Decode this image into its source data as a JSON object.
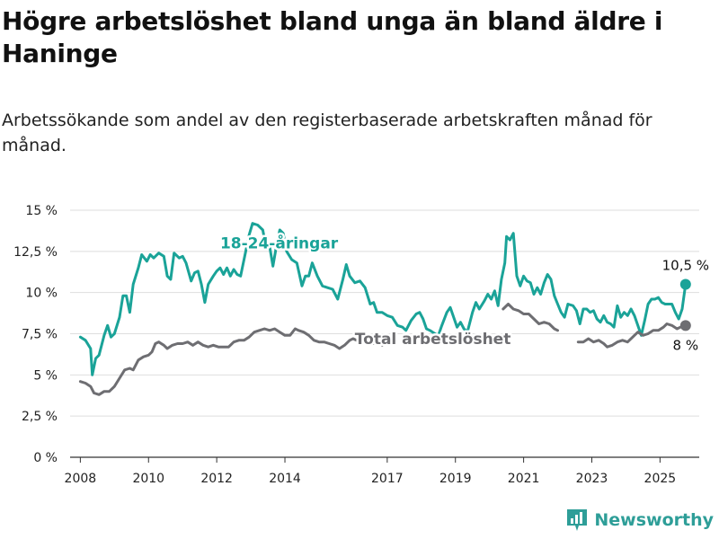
{
  "title": "Högre arbetslöshet bland unga än bland äldre i Haninge",
  "subtitle": "Arbetssökande som andel av den registerbaserade arbetskraften månad för månad.",
  "brand": {
    "name": "Newsworthy",
    "icon": "bar-chart-logo-icon",
    "color": "#2e9e98"
  },
  "chart_data": {
    "type": "line",
    "ylim": [
      0,
      15
    ],
    "yticks": [
      0,
      2.5,
      5,
      7.5,
      10,
      12.5,
      15
    ],
    "ytick_labels": [
      "0 %",
      "2,5 %",
      "5 %",
      "7,5 %",
      "10 %",
      "12,5 %",
      "15 %"
    ],
    "xlim": [
      2007.7,
      2026.15
    ],
    "xticks": [
      2008,
      2010,
      2012,
      2014,
      2017,
      2019,
      2021,
      2023,
      2025
    ],
    "xtick_labels": [
      "2008",
      "2010",
      "2012",
      "2014",
      "2017",
      "2019",
      "2021",
      "2023",
      "2025"
    ],
    "grid": true,
    "series": [
      {
        "name": "18-24-åringar",
        "color": "#1aa398",
        "label_position": [
          2012.1,
          13.0
        ],
        "end_label": "10,5 %",
        "points": [
          [
            2008.0,
            7.3
          ],
          [
            2008.15,
            7.1
          ],
          [
            2008.3,
            6.6
          ],
          [
            2008.35,
            5.0
          ],
          [
            2008.45,
            6.0
          ],
          [
            2008.55,
            6.2
          ],
          [
            2008.7,
            7.4
          ],
          [
            2008.8,
            8.0
          ],
          [
            2008.9,
            7.3
          ],
          [
            2009.0,
            7.5
          ],
          [
            2009.15,
            8.5
          ],
          [
            2009.25,
            9.8
          ],
          [
            2009.35,
            9.8
          ],
          [
            2009.45,
            8.8
          ],
          [
            2009.55,
            10.5
          ],
          [
            2009.7,
            11.5
          ],
          [
            2009.8,
            12.3
          ],
          [
            2009.95,
            11.9
          ],
          [
            2010.05,
            12.3
          ],
          [
            2010.15,
            12.1
          ],
          [
            2010.3,
            12.4
          ],
          [
            2010.45,
            12.2
          ],
          [
            2010.55,
            11.0
          ],
          [
            2010.65,
            10.8
          ],
          [
            2010.75,
            12.4
          ],
          [
            2010.9,
            12.1
          ],
          [
            2011.0,
            12.2
          ],
          [
            2011.1,
            11.8
          ],
          [
            2011.25,
            10.7
          ],
          [
            2011.35,
            11.2
          ],
          [
            2011.45,
            11.3
          ],
          [
            2011.55,
            10.5
          ],
          [
            2011.65,
            9.4
          ],
          [
            2011.75,
            10.5
          ],
          [
            2011.9,
            11.0
          ],
          [
            2012.0,
            11.3
          ],
          [
            2012.1,
            11.5
          ],
          [
            2012.2,
            11.1
          ],
          [
            2012.3,
            11.5
          ],
          [
            2012.4,
            11.0
          ],
          [
            2012.5,
            11.4
          ],
          [
            2012.6,
            11.1
          ],
          [
            2012.7,
            11.0
          ],
          [
            2012.85,
            12.5
          ],
          [
            2012.95,
            13.5
          ],
          [
            2013.05,
            14.2
          ],
          [
            2013.2,
            14.1
          ],
          [
            2013.35,
            13.8
          ],
          [
            2013.45,
            12.7
          ],
          [
            2013.55,
            12.8
          ],
          [
            2013.65,
            11.6
          ],
          [
            2013.75,
            12.8
          ],
          [
            2013.85,
            13.8
          ],
          [
            2013.95,
            13.6
          ],
          [
            2014.05,
            12.5
          ],
          [
            2014.2,
            12.0
          ],
          [
            2014.35,
            11.8
          ],
          [
            2014.5,
            10.4
          ],
          [
            2014.6,
            11.0
          ],
          [
            2014.7,
            11.0
          ],
          [
            2014.8,
            11.8
          ],
          [
            2014.95,
            11.0
          ],
          [
            2015.1,
            10.4
          ],
          [
            2015.25,
            10.3
          ],
          [
            2015.4,
            10.2
          ],
          [
            2015.55,
            9.6
          ],
          [
            2015.7,
            10.8
          ],
          [
            2015.8,
            11.7
          ],
          [
            2015.9,
            11.0
          ],
          [
            2016.05,
            10.6
          ],
          [
            2016.2,
            10.7
          ],
          [
            2016.35,
            10.3
          ],
          [
            2016.5,
            9.3
          ],
          [
            2016.6,
            9.4
          ],
          [
            2016.7,
            8.8
          ],
          [
            2016.85,
            8.8
          ],
          [
            2017.0,
            8.6
          ],
          [
            2017.15,
            8.5
          ],
          [
            2017.3,
            8.0
          ],
          [
            2017.45,
            7.9
          ],
          [
            2017.55,
            7.7
          ],
          [
            2017.7,
            8.3
          ],
          [
            2017.85,
            8.7
          ],
          [
            2017.95,
            8.8
          ],
          [
            2018.05,
            8.4
          ],
          [
            2018.15,
            7.8
          ],
          [
            2018.25,
            7.7
          ],
          [
            2018.4,
            7.5
          ],
          [
            2018.5,
            7.4
          ],
          [
            2018.6,
            8.0
          ],
          [
            2018.75,
            8.8
          ],
          [
            2018.85,
            9.1
          ],
          [
            2018.95,
            8.5
          ],
          [
            2019.05,
            7.9
          ],
          [
            2019.15,
            8.2
          ],
          [
            2019.25,
            7.8
          ],
          [
            2019.35,
            7.6
          ],
          [
            2019.5,
            8.8
          ],
          [
            2019.6,
            9.4
          ],
          [
            2019.7,
            9.0
          ],
          [
            2019.85,
            9.5
          ],
          [
            2019.95,
            9.9
          ],
          [
            2020.05,
            9.6
          ],
          [
            2020.15,
            10.1
          ],
          [
            2020.25,
            9.2
          ],
          [
            2020.35,
            10.8
          ],
          [
            2020.45,
            11.8
          ],
          [
            2020.5,
            13.4
          ],
          [
            2020.6,
            13.2
          ],
          [
            2020.7,
            13.6
          ],
          [
            2020.8,
            11.0
          ],
          [
            2020.9,
            10.4
          ],
          [
            2021.0,
            11.0
          ],
          [
            2021.1,
            10.7
          ],
          [
            2021.2,
            10.6
          ],
          [
            2021.3,
            9.9
          ],
          [
            2021.4,
            10.3
          ],
          [
            2021.5,
            9.9
          ],
          [
            2021.6,
            10.6
          ],
          [
            2021.7,
            11.1
          ],
          [
            2021.8,
            10.8
          ],
          [
            2021.9,
            9.8
          ],
          [
            2022.0,
            9.3
          ],
          [
            2022.1,
            8.8
          ],
          [
            2022.2,
            8.5
          ],
          [
            2022.3,
            9.3
          ],
          [
            2022.45,
            9.2
          ],
          [
            2022.55,
            8.9
          ],
          [
            2022.65,
            8.1
          ],
          [
            2022.75,
            9.0
          ],
          [
            2022.85,
            9.0
          ],
          [
            2022.95,
            8.8
          ],
          [
            2023.05,
            8.9
          ],
          [
            2023.15,
            8.4
          ],
          [
            2023.25,
            8.2
          ],
          [
            2023.35,
            8.6
          ],
          [
            2023.45,
            8.2
          ],
          [
            2023.55,
            8.1
          ],
          [
            2023.65,
            7.9
          ],
          [
            2023.75,
            9.2
          ],
          [
            2023.85,
            8.5
          ],
          [
            2023.95,
            8.8
          ],
          [
            2024.05,
            8.6
          ],
          [
            2024.15,
            9.0
          ],
          [
            2024.25,
            8.6
          ],
          [
            2024.35,
            8.0
          ],
          [
            2024.45,
            7.4
          ],
          [
            2024.55,
            8.3
          ],
          [
            2024.65,
            9.3
          ],
          [
            2024.75,
            9.6
          ],
          [
            2024.85,
            9.6
          ],
          [
            2024.95,
            9.7
          ],
          [
            2025.05,
            9.4
          ],
          [
            2025.15,
            9.3
          ],
          [
            2025.25,
            9.3
          ],
          [
            2025.35,
            9.3
          ],
          [
            2025.45,
            8.8
          ],
          [
            2025.55,
            8.4
          ],
          [
            2025.65,
            9.0
          ],
          [
            2025.75,
            10.5
          ]
        ]
      },
      {
        "name": "Total arbetslöshet",
        "color": "#6e6e72",
        "label_position": [
          2016.05,
          7.2
        ],
        "end_label": "8 %",
        "points": [
          [
            2008.0,
            4.6
          ],
          [
            2008.15,
            4.5
          ],
          [
            2008.3,
            4.3
          ],
          [
            2008.4,
            3.9
          ],
          [
            2008.55,
            3.8
          ],
          [
            2008.7,
            4.0
          ],
          [
            2008.85,
            4.0
          ],
          [
            2009.0,
            4.3
          ],
          [
            2009.15,
            4.8
          ],
          [
            2009.3,
            5.3
          ],
          [
            2009.45,
            5.4
          ],
          [
            2009.55,
            5.3
          ],
          [
            2009.7,
            5.9
          ],
          [
            2009.85,
            6.1
          ],
          [
            2010.0,
            6.2
          ],
          [
            2010.1,
            6.4
          ],
          [
            2010.2,
            6.9
          ],
          [
            2010.3,
            7.0
          ],
          [
            2010.45,
            6.8
          ],
          [
            2010.55,
            6.6
          ],
          [
            2010.7,
            6.8
          ],
          [
            2010.85,
            6.9
          ],
          [
            2011.0,
            6.9
          ],
          [
            2011.15,
            7.0
          ],
          [
            2011.3,
            6.8
          ],
          [
            2011.45,
            7.0
          ],
          [
            2011.6,
            6.8
          ],
          [
            2011.75,
            6.7
          ],
          [
            2011.9,
            6.8
          ],
          [
            2012.05,
            6.7
          ],
          [
            2012.2,
            6.7
          ],
          [
            2012.35,
            6.7
          ],
          [
            2012.5,
            7.0
          ],
          [
            2012.65,
            7.1
          ],
          [
            2012.8,
            7.1
          ],
          [
            2012.95,
            7.3
          ],
          [
            2013.1,
            7.6
          ],
          [
            2013.25,
            7.7
          ],
          [
            2013.4,
            7.8
          ],
          [
            2013.55,
            7.7
          ],
          [
            2013.7,
            7.8
          ],
          [
            2013.85,
            7.6
          ],
          [
            2014.0,
            7.4
          ],
          [
            2014.15,
            7.4
          ],
          [
            2014.3,
            7.8
          ],
          [
            2014.4,
            7.7
          ],
          [
            2014.55,
            7.6
          ],
          [
            2014.7,
            7.4
          ],
          [
            2014.85,
            7.1
          ],
          [
            2015.0,
            7.0
          ],
          [
            2015.15,
            7.0
          ],
          [
            2015.3,
            6.9
          ],
          [
            2015.45,
            6.8
          ],
          [
            2015.6,
            6.6
          ],
          [
            2015.75,
            6.8
          ],
          [
            2015.9,
            7.1
          ],
          [
            2016.0,
            7.2
          ],
          [
            2016.1,
            7.1
          ],
          [
            2016.2,
            7.1
          ],
          [
            2016.35,
            7.3
          ],
          [
            2016.5,
            7.2
          ],
          [
            2016.6,
            6.9
          ],
          [
            2016.75,
            7.0
          ],
          [
            2016.85,
            6.8
          ],
          [
            2017.0,
            6.9
          ],
          [
            2017.1,
            6.9
          ],
          [
            2020.4,
            9.0
          ],
          [
            2020.55,
            9.3
          ],
          [
            2020.7,
            9.0
          ],
          [
            2020.85,
            8.9
          ],
          [
            2021.0,
            8.7
          ],
          [
            2021.15,
            8.7
          ],
          [
            2021.3,
            8.4
          ],
          [
            2021.45,
            8.1
          ],
          [
            2021.6,
            8.2
          ],
          [
            2021.75,
            8.1
          ],
          [
            2021.9,
            7.8
          ],
          [
            2022.0,
            7.7
          ],
          [
            2022.6,
            7.0
          ],
          [
            2022.75,
            7.0
          ],
          [
            2022.9,
            7.2
          ],
          [
            2023.05,
            7.0
          ],
          [
            2023.2,
            7.1
          ],
          [
            2023.35,
            6.9
          ],
          [
            2023.45,
            6.7
          ],
          [
            2023.6,
            6.8
          ],
          [
            2023.75,
            7.0
          ],
          [
            2023.9,
            7.1
          ],
          [
            2024.05,
            7.0
          ],
          [
            2024.2,
            7.3
          ],
          [
            2024.35,
            7.6
          ],
          [
            2024.5,
            7.4
          ],
          [
            2024.65,
            7.5
          ],
          [
            2024.8,
            7.7
          ],
          [
            2024.95,
            7.7
          ],
          [
            2025.1,
            7.9
          ],
          [
            2025.2,
            8.1
          ],
          [
            2025.35,
            8.0
          ],
          [
            2025.5,
            7.8
          ],
          [
            2025.6,
            7.9
          ],
          [
            2025.75,
            8.0
          ]
        ]
      }
    ]
  }
}
